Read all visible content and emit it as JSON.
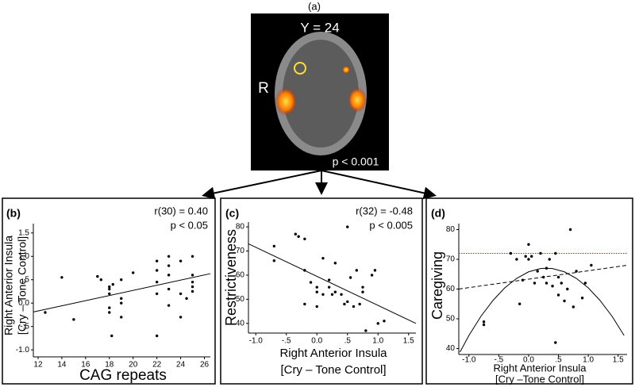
{
  "panel_a": {
    "label": "(a)",
    "slice": "Y = 24",
    "side": "R",
    "threshold": "p < 0.001"
  },
  "chart_data": [
    {
      "type": "scatter",
      "panel": "(b)",
      "annotations": [
        "r(30) = 0.40",
        "p < 0.05"
      ],
      "xlabel": "CAG repeats",
      "ylabel": [
        "Right Anterior Insula",
        "[Cry – Tone Control]"
      ],
      "x": [
        12.6,
        14,
        15,
        17,
        17.3,
        18,
        18,
        18,
        18,
        18,
        18.2,
        18.3,
        19,
        19,
        19,
        19,
        20,
        22,
        22,
        22,
        22,
        22,
        23,
        23,
        23,
        23,
        23,
        24,
        24,
        24,
        24.5,
        25,
        25,
        25,
        25,
        25
      ],
      "y": [
        -0.2,
        0.55,
        -0.35,
        0.57,
        0.5,
        0.35,
        0.3,
        0.2,
        -0.1,
        -0.2,
        -0.7,
        0.4,
        0.1,
        -0.3,
        0,
        0.5,
        0.65,
        0.9,
        0.7,
        0.45,
        0.2,
        -0.7,
        1.0,
        0.8,
        0.6,
        0.3,
        -0.05,
        0.9,
        0.2,
        -0.3,
        0.1,
        1.0,
        0.6,
        0.45,
        0.35,
        0.25
      ],
      "xlim": [
        11.6,
        26.5
      ],
      "ylim": [
        -1.15,
        1.7
      ],
      "xticks": [
        12,
        14,
        16,
        18,
        20,
        22,
        24,
        26
      ],
      "yticks": [
        1.5,
        {
          "value": 1.0,
          "label": "1.0"
        },
        {
          "value": 0.5,
          "label": ".5"
        },
        {
          "value": 0,
          "label": "0.0"
        },
        {
          "value": -0.5,
          "label": "-.5"
        },
        {
          "value": -1.0,
          "label": "-1.0"
        }
      ],
      "fit": {
        "x": [
          11.6,
          26.5
        ],
        "y": [
          -0.19,
          0.63
        ]
      },
      "fit_style": "solid"
    },
    {
      "type": "scatter",
      "panel": "(c)",
      "annotations": [
        "r(32) = -0.48",
        "p < 0.005"
      ],
      "xlabel": [
        "Right Anterior Insula",
        "[Cry – Tone Control]"
      ],
      "ylabel": [
        "Restrictiveness"
      ],
      "x": [
        -0.7,
        -0.7,
        -0.35,
        -0.3,
        -0.2,
        -0.2,
        -0.2,
        -0.1,
        0,
        0,
        0,
        0.1,
        0.1,
        0.2,
        0.2,
        0.25,
        0.3,
        0.3,
        0.4,
        0.45,
        0.5,
        0.5,
        0.55,
        0.6,
        0.65,
        0.7,
        0.75,
        0.75,
        0.8,
        0.9,
        0.95,
        1.0,
        1.1
      ],
      "y": [
        72,
        66,
        77,
        76,
        75,
        62,
        48,
        57,
        55,
        53,
        47,
        67,
        52,
        58,
        55,
        52,
        65,
        53,
        52,
        48,
        80,
        49,
        59,
        47,
        62,
        48,
        55,
        53,
        37,
        60,
        62,
        40,
        41
      ],
      "xlim": [
        -1.12,
        1.62
      ],
      "ylim": [
        36,
        82
      ],
      "xticks": [
        {
          "value": -1.0,
          "label": "-1.0"
        },
        {
          "value": -0.5,
          "label": "-.5"
        },
        {
          "value": 0,
          "label": "0.0"
        },
        {
          "value": 0.5,
          "label": ".5"
        },
        {
          "value": 1.0,
          "label": "1.0"
        },
        1.5
      ],
      "yticks": [
        40,
        50,
        60,
        70,
        80
      ],
      "fit": {
        "x": [
          -1.12,
          1.62
        ],
        "y": [
          73,
          40
        ]
      },
      "fit_style": "solid"
    },
    {
      "type": "scatter",
      "panel": "(d)",
      "annotations": [],
      "xlabel": [
        "Right Anterior Insula",
        "[Cry –Tone Control]"
      ],
      "ylabel": [
        "Caregiving"
      ],
      "x": [
        -0.75,
        -0.75,
        -0.3,
        -0.2,
        -0.15,
        -0.1,
        -0.05,
        0,
        0,
        0.05,
        0.1,
        0.15,
        0.2,
        0.25,
        0.3,
        0.3,
        0.35,
        0.4,
        0.45,
        0.5,
        0.5,
        0.55,
        0.6,
        0.65,
        0.7,
        0.75,
        0.8,
        0.9,
        0.95,
        1.05,
        0.45
      ],
      "y": [
        49,
        48,
        72,
        70,
        55,
        63,
        71,
        70,
        75,
        71,
        62,
        66,
        72,
        64,
        67,
        62,
        70,
        61,
        72,
        64,
        58,
        62,
        56,
        60,
        80,
        54,
        66,
        57,
        62,
        68,
        42
      ],
      "xlim": [
        -1.17,
        1.65
      ],
      "ylim": [
        38,
        82
      ],
      "xticks": [
        {
          "value": -1.0,
          "label": "-1.0"
        },
        {
          "value": -0.5,
          "label": "-.5"
        },
        {
          "value": 0,
          "label": "0.0"
        },
        {
          "value": 0.5,
          "label": ".5"
        },
        {
          "value": 1.0,
          "label": "1.0"
        },
        1.5
      ],
      "yticks": [
        40,
        50,
        60,
        70,
        80
      ],
      "fit": {
        "x": [
          -1.17,
          1.65
        ],
        "y": [
          60,
          68
        ]
      },
      "fit_style": "dashed",
      "curve": {
        "x": [
          -1.15,
          -1.0,
          -0.8,
          -0.6,
          -0.4,
          -0.2,
          0,
          0.2,
          0.3,
          0.4,
          0.6,
          0.8,
          1.0,
          1.2,
          1.4,
          1.6
        ],
        "y": [
          38.8,
          44.4,
          50.8,
          56.1,
          60.4,
          63.6,
          65.8,
          66.9,
          67,
          66.9,
          65.8,
          63.6,
          60.4,
          56.1,
          50.8,
          44.4
        ]
      },
      "reference_line": 72,
      "reference_color": "#d62020"
    }
  ]
}
